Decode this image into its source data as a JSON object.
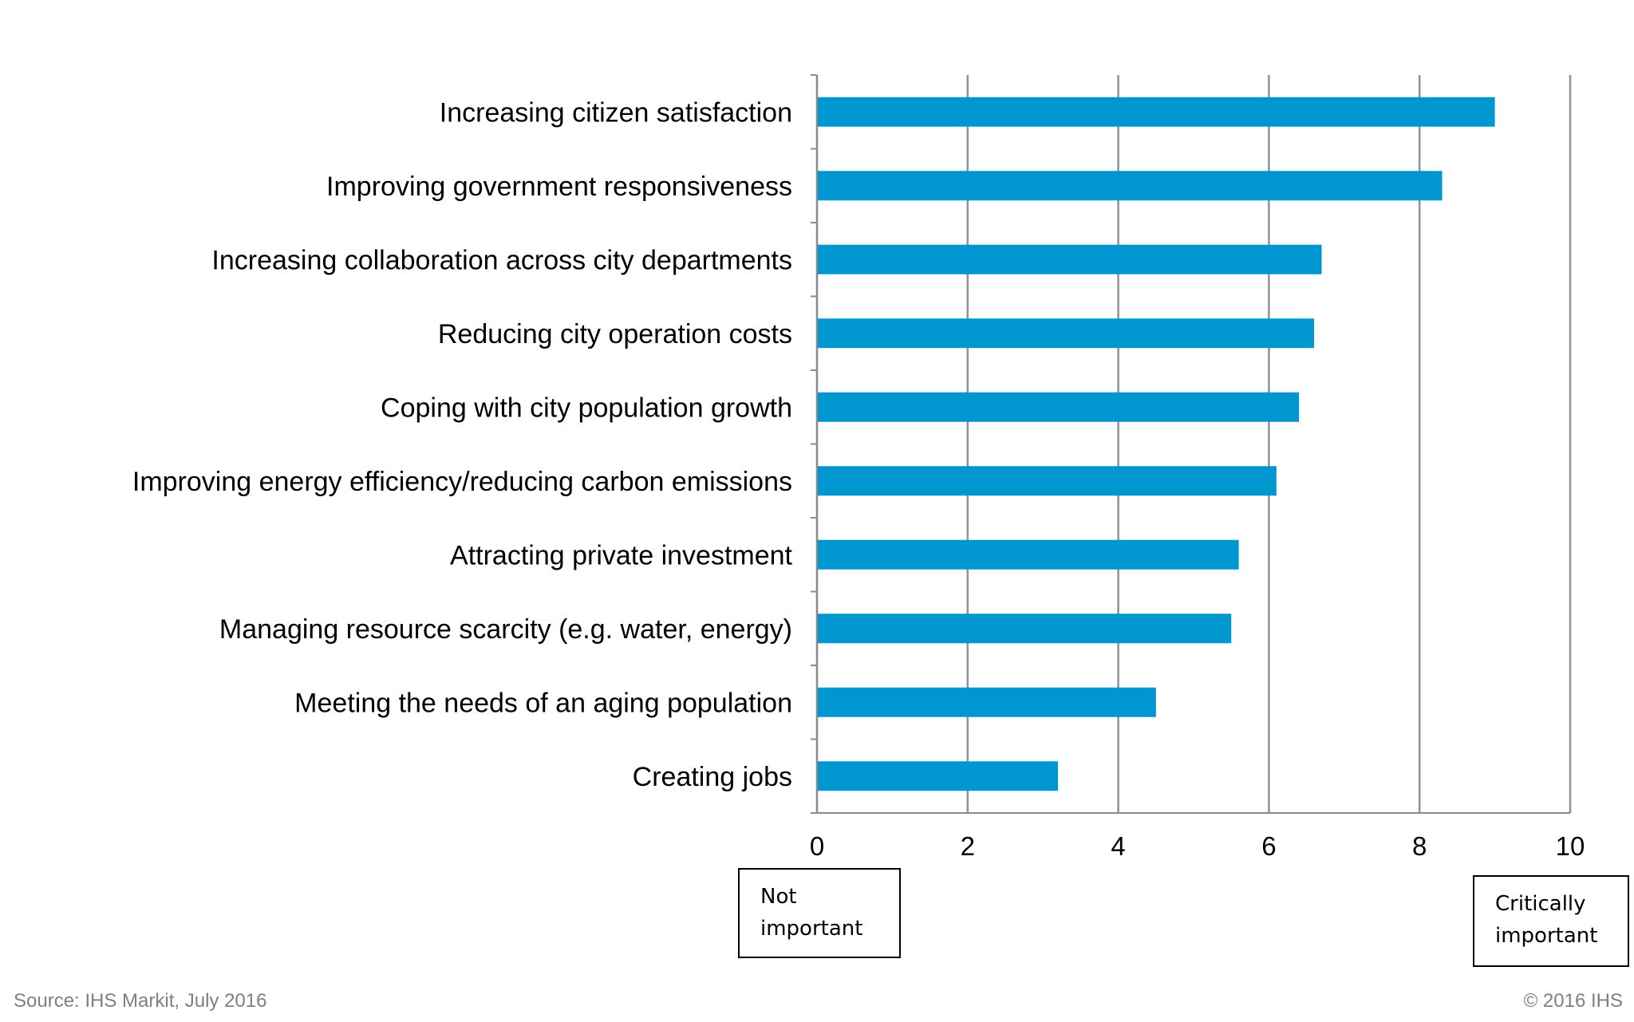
{
  "chart_data": {
    "type": "bar",
    "orientation": "horizontal",
    "categories": [
      "Increasing citizen satisfaction",
      "Improving government responsiveness",
      "Increasing collaboration across city departments",
      "Reducing city operation costs",
      "Coping with city population growth",
      "Improving energy efficiency/reducing carbon emissions",
      "Attracting private investment",
      "Managing resource scarcity (e.g. water, energy)",
      "Meeting the needs of an aging population",
      "Creating jobs"
    ],
    "values": [
      9.0,
      8.3,
      6.7,
      6.6,
      6.4,
      6.1,
      5.6,
      5.5,
      4.5,
      3.2
    ],
    "xlim": [
      0,
      10
    ],
    "xticks": [
      "0",
      "2",
      "4",
      "6",
      "8",
      "10"
    ],
    "grid": "vertical",
    "bar_color": "#0096d0",
    "title": "",
    "xlabel": "",
    "ylabel": ""
  },
  "scale_labels": {
    "low": "Not\nimportant",
    "high": "Critically\nimportant"
  },
  "footer": {
    "source": "Source: IHS Markit, July 2016",
    "copyright": "© 2016 IHS"
  }
}
